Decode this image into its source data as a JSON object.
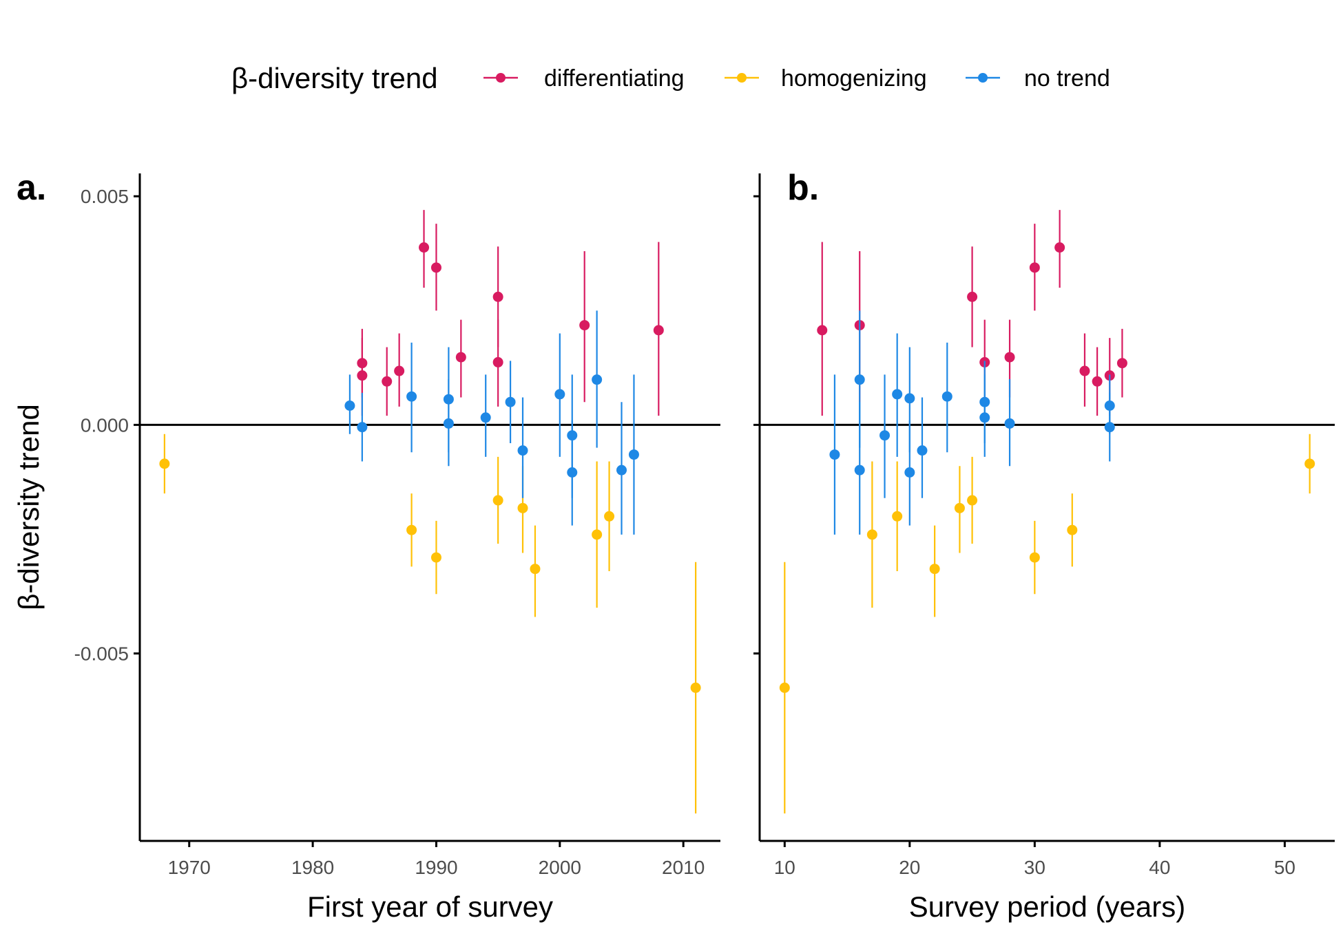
{
  "legend": {
    "title": "β-diversity trend",
    "entries": [
      {
        "label": "differentiating",
        "color": "#d81b60"
      },
      {
        "label": "homogenizing",
        "color": "#ffc107"
      },
      {
        "label": "no trend",
        "color": "#1e88e5"
      }
    ]
  },
  "chart_data": [
    {
      "panel": "a.",
      "type": "scatter",
      "xlabel": "First year of survey",
      "ylabel": "β-diversity trend",
      "xlim": [
        1966,
        2013
      ],
      "ylim": [
        -0.0091,
        0.0055
      ],
      "xticks": [
        1970,
        1980,
        1990,
        2000,
        2010
      ],
      "yticks": [
        0.005,
        0.0,
        -0.005
      ],
      "ytick_labels": [
        "0.005",
        "0.000",
        "-0.005"
      ],
      "reference_line_y": 0,
      "grid": false,
      "series": [
        {
          "name": "differentiating",
          "color": "#d81b60",
          "points": [
            {
              "x": 1984,
              "y": 0.00135,
              "lo": 0.0006,
              "hi": 0.0021
            },
            {
              "x": 1984,
              "y": 0.00108,
              "lo": 0.0002,
              "hi": 0.0019
            },
            {
              "x": 1986,
              "y": 0.00095,
              "lo": 0.0002,
              "hi": 0.0017
            },
            {
              "x": 1987,
              "y": 0.00118,
              "lo": 0.0004,
              "hi": 0.002
            },
            {
              "x": 1989,
              "y": 0.00388,
              "lo": 0.003,
              "hi": 0.0047
            },
            {
              "x": 1990,
              "y": 0.00344,
              "lo": 0.0025,
              "hi": 0.0044
            },
            {
              "x": 1992,
              "y": 0.00148,
              "lo": 0.0006,
              "hi": 0.0023
            },
            {
              "x": 1995,
              "y": 0.0028,
              "lo": 0.0017,
              "hi": 0.0039
            },
            {
              "x": 1995,
              "y": 0.00137,
              "lo": 0.0004,
              "hi": 0.0023
            },
            {
              "x": 2002,
              "y": 0.00218,
              "lo": 0.0005,
              "hi": 0.0038
            },
            {
              "x": 2008,
              "y": 0.00207,
              "lo": 0.0002,
              "hi": 0.004
            }
          ]
        },
        {
          "name": "homogenizing",
          "color": "#ffc107",
          "points": [
            {
              "x": 1968,
              "y": -0.00085,
              "lo": -0.0015,
              "hi": -0.0002
            },
            {
              "x": 1988,
              "y": -0.0023,
              "lo": -0.0031,
              "hi": -0.0015
            },
            {
              "x": 1990,
              "y": -0.0029,
              "lo": -0.0037,
              "hi": -0.0021
            },
            {
              "x": 1995,
              "y": -0.00165,
              "lo": -0.0026,
              "hi": -0.0007
            },
            {
              "x": 1997,
              "y": -0.00182,
              "lo": -0.0028,
              "hi": -0.0009
            },
            {
              "x": 1998,
              "y": -0.00315,
              "lo": -0.0042,
              "hi": -0.0022
            },
            {
              "x": 2003,
              "y": -0.0024,
              "lo": -0.004,
              "hi": -0.0008
            },
            {
              "x": 2004,
              "y": -0.002,
              "lo": -0.0032,
              "hi": -0.0008
            },
            {
              "x": 2011,
              "y": -0.00575,
              "lo": -0.0085,
              "hi": -0.003
            }
          ]
        },
        {
          "name": "no trend",
          "color": "#1e88e5",
          "points": [
            {
              "x": 1983,
              "y": 0.00042,
              "lo": -0.0002,
              "hi": 0.0011
            },
            {
              "x": 1984,
              "y": -5e-05,
              "lo": -0.0008,
              "hi": 0.0007
            },
            {
              "x": 1988,
              "y": 0.00062,
              "lo": -0.0006,
              "hi": 0.0018
            },
            {
              "x": 1991,
              "y": 0.00056,
              "lo": -0.0006,
              "hi": 0.0017
            },
            {
              "x": 1991,
              "y": 3e-05,
              "lo": -0.0009,
              "hi": 0.001
            },
            {
              "x": 1994,
              "y": 0.00016,
              "lo": -0.0007,
              "hi": 0.0011
            },
            {
              "x": 1996,
              "y": 0.0005,
              "lo": -0.0004,
              "hi": 0.0014
            },
            {
              "x": 1997,
              "y": -0.00056,
              "lo": -0.0016,
              "hi": 0.0006
            },
            {
              "x": 2000,
              "y": 0.00067,
              "lo": -0.0007,
              "hi": 0.002
            },
            {
              "x": 2001,
              "y": -0.00023,
              "lo": -0.0016,
              "hi": 0.0011
            },
            {
              "x": 2001,
              "y": -0.00104,
              "lo": -0.0022,
              "hi": 0.0001
            },
            {
              "x": 2003,
              "y": 0.00099,
              "lo": -0.0005,
              "hi": 0.0025
            },
            {
              "x": 2005,
              "y": -0.00099,
              "lo": -0.0024,
              "hi": 0.0005
            },
            {
              "x": 2006,
              "y": -0.00065,
              "lo": -0.0024,
              "hi": 0.0011
            }
          ]
        }
      ]
    },
    {
      "panel": "b.",
      "type": "scatter",
      "xlabel": "Survey period (years)",
      "ylabel": "",
      "xlim": [
        8,
        54
      ],
      "ylim": [
        -0.0091,
        0.0055
      ],
      "xticks": [
        10,
        20,
        30,
        40,
        50
      ],
      "yticks": [
        0.005,
        0.0,
        -0.005
      ],
      "ytick_labels": [
        "",
        "",
        ""
      ],
      "reference_line_y": 0,
      "grid": false,
      "series": [
        {
          "name": "differentiating",
          "color": "#d81b60",
          "points": [
            {
              "x": 13,
              "y": 0.00207,
              "lo": 0.0002,
              "hi": 0.004
            },
            {
              "x": 16,
              "y": 0.00218,
              "lo": 0.0005,
              "hi": 0.0038
            },
            {
              "x": 25,
              "y": 0.0028,
              "lo": 0.0017,
              "hi": 0.0039
            },
            {
              "x": 26,
              "y": 0.00137,
              "lo": 0.0004,
              "hi": 0.0023
            },
            {
              "x": 28,
              "y": 0.00148,
              "lo": 0.0006,
              "hi": 0.0023
            },
            {
              "x": 30,
              "y": 0.00344,
              "lo": 0.0025,
              "hi": 0.0044
            },
            {
              "x": 32,
              "y": 0.00388,
              "lo": 0.003,
              "hi": 0.0047
            },
            {
              "x": 34,
              "y": 0.00118,
              "lo": 0.0004,
              "hi": 0.002
            },
            {
              "x": 35,
              "y": 0.00095,
              "lo": 0.0002,
              "hi": 0.0017
            },
            {
              "x": 36,
              "y": 0.00108,
              "lo": 0.0002,
              "hi": 0.0019
            },
            {
              "x": 37,
              "y": 0.00135,
              "lo": 0.0006,
              "hi": 0.0021
            }
          ]
        },
        {
          "name": "homogenizing",
          "color": "#ffc107",
          "points": [
            {
              "x": 10,
              "y": -0.00575,
              "lo": -0.0085,
              "hi": -0.003
            },
            {
              "x": 17,
              "y": -0.0024,
              "lo": -0.004,
              "hi": -0.0008
            },
            {
              "x": 19,
              "y": -0.002,
              "lo": -0.0032,
              "hi": -0.0008
            },
            {
              "x": 22,
              "y": -0.00315,
              "lo": -0.0042,
              "hi": -0.0022
            },
            {
              "x": 24,
              "y": -0.00182,
              "lo": -0.0028,
              "hi": -0.0009
            },
            {
              "x": 25,
              "y": -0.00165,
              "lo": -0.0026,
              "hi": -0.0007
            },
            {
              "x": 30,
              "y": -0.0029,
              "lo": -0.0037,
              "hi": -0.0021
            },
            {
              "x": 33,
              "y": -0.0023,
              "lo": -0.0031,
              "hi": -0.0015
            },
            {
              "x": 52,
              "y": -0.00085,
              "lo": -0.0015,
              "hi": -0.0002
            }
          ]
        },
        {
          "name": "no trend",
          "color": "#1e88e5",
          "points": [
            {
              "x": 14,
              "y": -0.00065,
              "lo": -0.0024,
              "hi": 0.0011
            },
            {
              "x": 16,
              "y": 0.00099,
              "lo": -0.0005,
              "hi": 0.0025
            },
            {
              "x": 16,
              "y": -0.00099,
              "lo": -0.0024,
              "hi": 0.0005
            },
            {
              "x": 18,
              "y": -0.00023,
              "lo": -0.0016,
              "hi": 0.0011
            },
            {
              "x": 19,
              "y": 0.00067,
              "lo": -0.0007,
              "hi": 0.002
            },
            {
              "x": 20,
              "y": 0.00058,
              "lo": -0.0006,
              "hi": 0.0017
            },
            {
              "x": 20,
              "y": -0.00104,
              "lo": -0.0022,
              "hi": 0.0001
            },
            {
              "x": 21,
              "y": -0.00056,
              "lo": -0.0016,
              "hi": 0.0006
            },
            {
              "x": 23,
              "y": 0.00062,
              "lo": -0.0006,
              "hi": 0.0018
            },
            {
              "x": 26,
              "y": 0.0005,
              "lo": -0.0004,
              "hi": 0.0014
            },
            {
              "x": 26,
              "y": 0.00016,
              "lo": -0.0007,
              "hi": 0.0011
            },
            {
              "x": 28,
              "y": 3e-05,
              "lo": -0.0009,
              "hi": 0.001
            },
            {
              "x": 36,
              "y": 0.00042,
              "lo": -0.0002,
              "hi": 0.0011
            },
            {
              "x": 36,
              "y": -5e-05,
              "lo": -0.0008,
              "hi": 0.0007
            }
          ]
        }
      ]
    }
  ]
}
